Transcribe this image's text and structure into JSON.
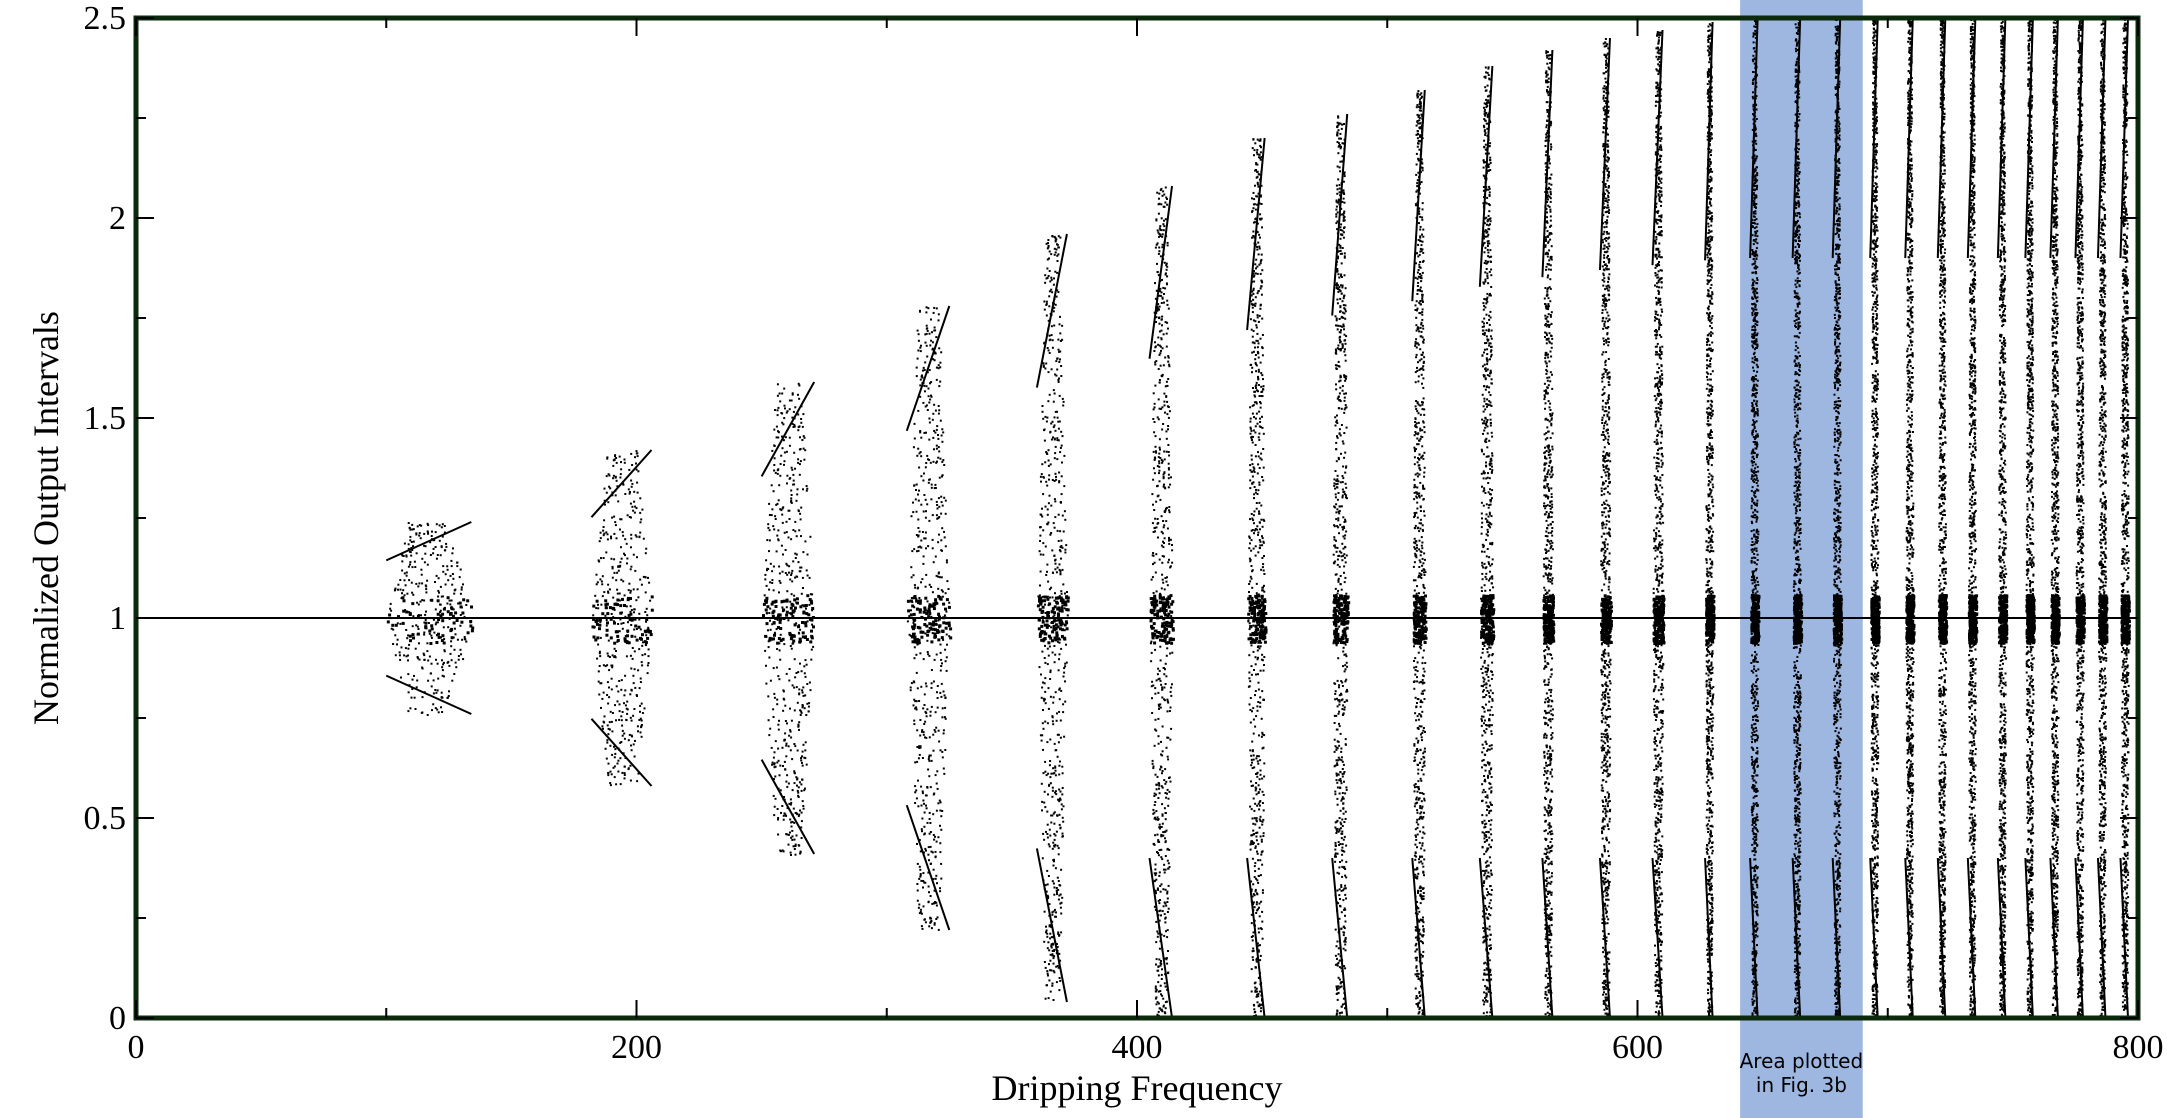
{
  "chart_data": {
    "type": "scatter",
    "title": "",
    "xlabel": "Dripping Frequency",
    "ylabel": "Normalized Output Intervals",
    "xlim": [
      0,
      800
    ],
    "ylim": [
      0,
      2.5
    ],
    "x_ticks": [
      0,
      200,
      400,
      600,
      800
    ],
    "x_tick_labels": [
      "0",
      "200",
      "400",
      "600",
      "800"
    ],
    "y_ticks": [
      0,
      0.5,
      1,
      1.5,
      2,
      2.5
    ],
    "y_tick_labels": [
      "0",
      "0.5",
      "1",
      "1.5",
      "2",
      "2.5"
    ],
    "grid": false,
    "frame_color": "#0b2a0b",
    "point_color": "#000000",
    "baseline": {
      "y": 1,
      "x_range": [
        0,
        800
      ]
    },
    "annotation": {
      "lines": [
        "Area plotted",
        "in Fig. 3b"
      ],
      "x_range": [
        641,
        690
      ],
      "color": "#9db7e0"
    },
    "bursts": [
      {
        "x": [
          100,
          134
        ],
        "ymin": 0.76,
        "ymax": 1.24,
        "density": 0.15
      },
      {
        "x": [
          182,
          206
        ],
        "ymin": 0.58,
        "ymax": 1.42,
        "density": 0.25
      },
      {
        "x": [
          250,
          271
        ],
        "ymin": 0.41,
        "ymax": 1.59,
        "density": 0.35
      },
      {
        "x": [
          308,
          325
        ],
        "ymin": 0.22,
        "ymax": 1.78,
        "density": 0.4
      },
      {
        "x": [
          360,
          372
        ],
        "ymin": 0.04,
        "ymax": 1.96,
        "density": 0.45
      },
      {
        "x": [
          405,
          414
        ],
        "ymin": 0.0,
        "ymax": 2.08,
        "density": 0.5
      },
      {
        "x": [
          444,
          451
        ],
        "ymin": 0.0,
        "ymax": 2.2,
        "density": 0.55
      },
      {
        "x": [
          478,
          484
        ],
        "ymin": 0.0,
        "ymax": 2.26,
        "density": 0.6
      },
      {
        "x": [
          510,
          515
        ],
        "ymin": 0.0,
        "ymax": 2.32,
        "density": 0.65
      },
      {
        "x": [
          537,
          542
        ],
        "ymin": 0.0,
        "ymax": 2.38,
        "density": 0.7
      },
      {
        "x": [
          562,
          566
        ],
        "ymin": 0.0,
        "ymax": 2.42,
        "density": 0.75
      },
      {
        "x": [
          585,
          589
        ],
        "ymin": 0.0,
        "ymax": 2.45,
        "density": 0.8
      },
      {
        "x": [
          606,
          610
        ],
        "ymin": 0.0,
        "ymax": 2.47,
        "density": 0.85
      },
      {
        "x": [
          627,
          630
        ],
        "ymin": 0.0,
        "ymax": 2.49,
        "density": 0.9
      },
      {
        "x": [
          645,
          648
        ],
        "ymin": 0.0,
        "ymax": 2.5,
        "density": 0.95
      },
      {
        "x": [
          662,
          665
        ],
        "ymin": 0.0,
        "ymax": 2.5,
        "density": 0.95
      },
      {
        "x": [
          678,
          681
        ],
        "ymin": 0.0,
        "ymax": 2.5,
        "density": 0.95
      },
      {
        "x": [
          693,
          696
        ],
        "ymin": 0.0,
        "ymax": 2.5,
        "density": 0.95
      },
      {
        "x": [
          707,
          710
        ],
        "ymin": 0.0,
        "ymax": 2.5,
        "density": 0.95
      },
      {
        "x": [
          720,
          723
        ],
        "ymin": 0.0,
        "ymax": 2.5,
        "density": 0.95
      },
      {
        "x": [
          732,
          735
        ],
        "ymin": 0.0,
        "ymax": 2.5,
        "density": 0.95
      },
      {
        "x": [
          744,
          747
        ],
        "ymin": 0.0,
        "ymax": 2.5,
        "density": 0.95
      },
      {
        "x": [
          755,
          758
        ],
        "ymin": 0.0,
        "ymax": 2.5,
        "density": 0.95
      },
      {
        "x": [
          765,
          768
        ],
        "ymin": 0.0,
        "ymax": 2.5,
        "density": 0.95
      },
      {
        "x": [
          775,
          778
        ],
        "ymin": 0.0,
        "ymax": 2.5,
        "density": 0.95
      },
      {
        "x": [
          784,
          787
        ],
        "ymin": 0.0,
        "ymax": 2.5,
        "density": 0.95
      },
      {
        "x": [
          793,
          796
        ],
        "ymin": 0.0,
        "ymax": 2.5,
        "density": 0.95
      }
    ]
  }
}
